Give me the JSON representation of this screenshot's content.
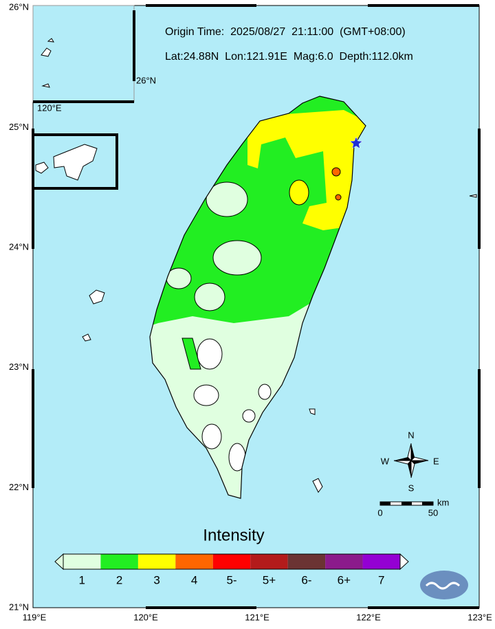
{
  "header": {
    "origin_time": "Origin Time:  2025/08/27  21:11:00  (GMT+08:00)",
    "location": "Lat:24.88N  Lon:121.91E  Mag:6.0  Depth:112.0km"
  },
  "axes": {
    "latitude_labels": [
      "26°N",
      "25°N",
      "24°N",
      "23°N",
      "22°N",
      "21°N"
    ],
    "longitude_labels": [
      "119°E",
      "120°E",
      "121°E",
      "122°E",
      "123°E"
    ]
  },
  "inset": {
    "lat_label": "26°N",
    "lon_label": "120°E"
  },
  "compass": {
    "north": "N",
    "east": "E",
    "south": "S",
    "west": "W"
  },
  "scale": {
    "unit": "km",
    "start": "0",
    "end": "50"
  },
  "legend": {
    "title": "Intensity",
    "items": [
      {
        "label": "1",
        "color": "#e0ffe0"
      },
      {
        "label": "2",
        "color": "#22ee22"
      },
      {
        "label": "3",
        "color": "#ffff00"
      },
      {
        "label": "4",
        "color": "#ff6600"
      },
      {
        "label": "5-",
        "color": "#ff0000"
      },
      {
        "label": "5+",
        "color": "#b31b1b"
      },
      {
        "label": "6-",
        "color": "#6b3333"
      },
      {
        "label": "6+",
        "color": "#8b1a8b"
      },
      {
        "label": "7",
        "color": "#9400d3"
      }
    ]
  }
}
